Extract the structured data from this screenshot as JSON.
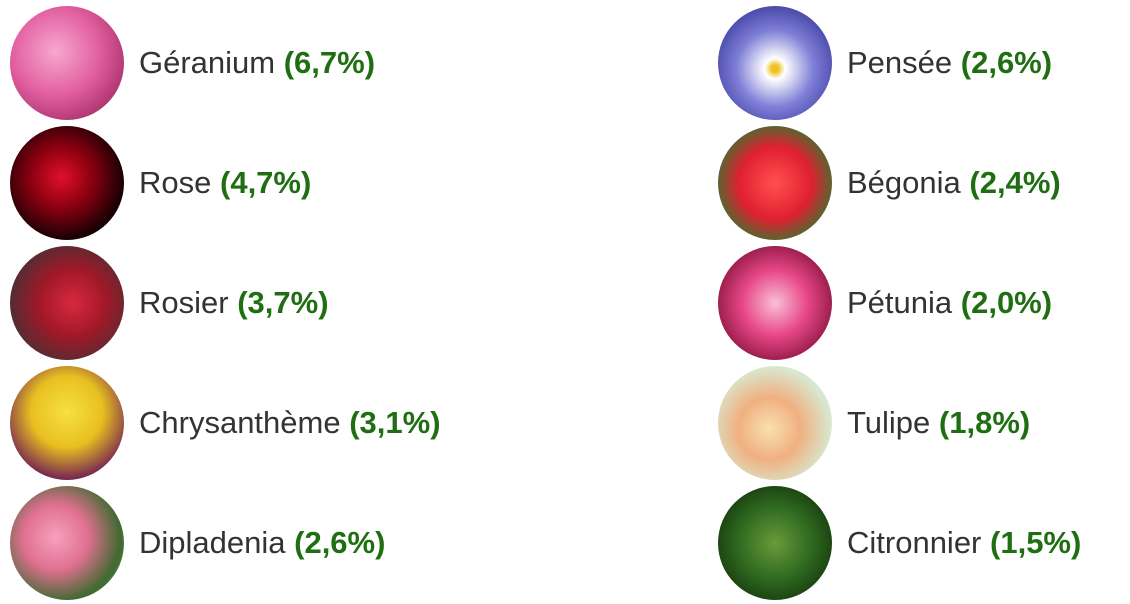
{
  "items": [
    {
      "name": "Géranium",
      "share": "(6,7%)"
    },
    {
      "name": "Rose",
      "share": "(4,7%)"
    },
    {
      "name": "Rosier",
      "share": "(3,7%)"
    },
    {
      "name": "Chrysanthème",
      "share": "(3,1%)"
    },
    {
      "name": "Dipladenia",
      "share": "(2,6%)"
    },
    {
      "name": "Pensée",
      "share": "(2,6%)"
    },
    {
      "name": "Bégonia",
      "share": "(2,4%)"
    },
    {
      "name": "Pétunia",
      "share": "(2,0%)"
    },
    {
      "name": "Tulipe",
      "share": "(1,8%)"
    },
    {
      "name": "Citronnier",
      "share": "(1,5%)"
    }
  ]
}
